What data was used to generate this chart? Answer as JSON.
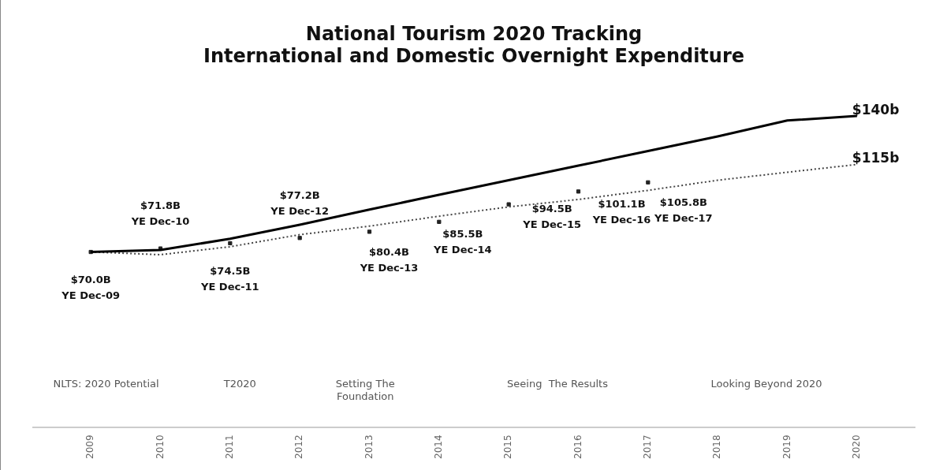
{
  "chart_data": {
    "type": "line",
    "title": "National Tourism 2020 Tracking",
    "subtitle": "International and Domestic Overnight Expenditure",
    "categories": [
      "2009",
      "2010",
      "2011",
      "2012",
      "2013",
      "2014",
      "2015",
      "2016",
      "2017",
      "2018",
      "2019",
      "2020"
    ],
    "series": [
      {
        "color": "#000000",
        "line_style": "solid",
        "marker": "none",
        "values": [
          70,
          71,
          76.8,
          84,
          91.8,
          99.4,
          106.9,
          114.4,
          121.9,
          129.4,
          137.6,
          140
        ],
        "value_labels": [
          null,
          null,
          null,
          null,
          null,
          null,
          null,
          null,
          null,
          null,
          null,
          "$140b"
        ]
      },
      {
        "color": "#444444",
        "line_style": "dotted",
        "marker": "none",
        "values": [
          70,
          68.6,
          72.7,
          78.9,
          83.3,
          88.4,
          93.2,
          97,
          101.7,
          106.9,
          111,
          115
        ],
        "value_labels": [
          null,
          null,
          null,
          null,
          null,
          null,
          null,
          null,
          null,
          null,
          null,
          "$115b"
        ]
      },
      {
        "type": "scatter",
        "color": "#222222",
        "marker": "square",
        "values": [
          70.0,
          71.8,
          74.5,
          77.2,
          80.4,
          85.5,
          94.5,
          101.1,
          105.8,
          null,
          null,
          null
        ],
        "value_labels": [
          "$70.0B\nYE Dec-09",
          "$71.8B\nYE Dec-10",
          "$74.5B\nYE Dec-11",
          "$77.2B\nYE Dec-12",
          "$80.4B\nYE Dec-13",
          "$85.5B\nYE Dec-14",
          "$94.5B\nYE Dec-15",
          "$101.1B\nYE Dec-16",
          "$105.8B\nYE Dec-17",
          null,
          null,
          null
        ]
      }
    ],
    "tick_labels": "x",
    "grid": false,
    "legend": false,
    "annotations": [
      "NLTS: 2020 Potential",
      "T2020",
      "Setting The\nFoundation",
      "Seeing  The Results",
      "Looking Beyond 2020"
    ]
  }
}
